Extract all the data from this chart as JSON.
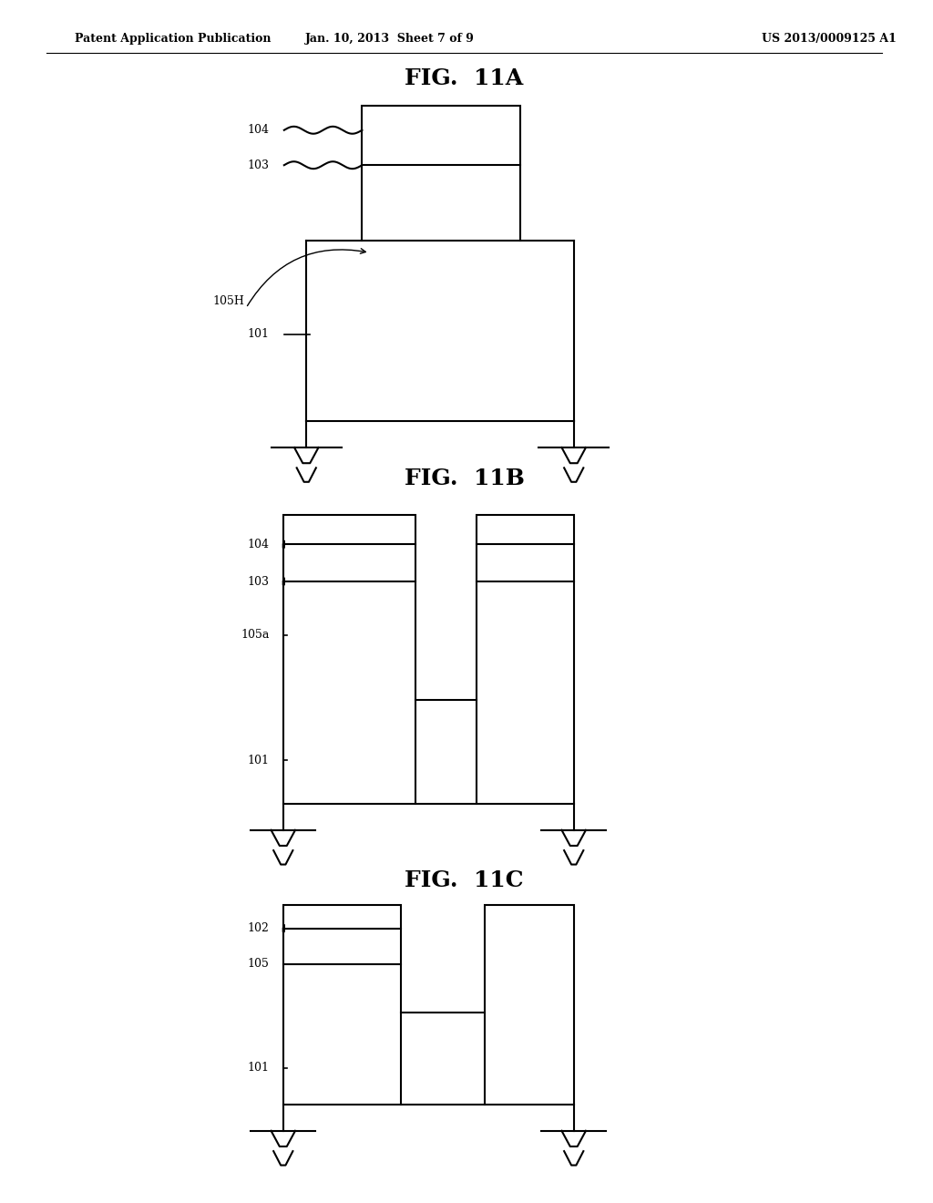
{
  "bg_color": "#ffffff",
  "text_color": "#000000",
  "header_left": "Patent Application Publication",
  "header_mid": "Jan. 10, 2013  Sheet 7 of 9",
  "header_right": "US 2013/0009125 A1",
  "fig_titles": [
    "FIG.  11A",
    "FIG.  11B",
    "FIG.  11C"
  ],
  "line_width": 1.5
}
